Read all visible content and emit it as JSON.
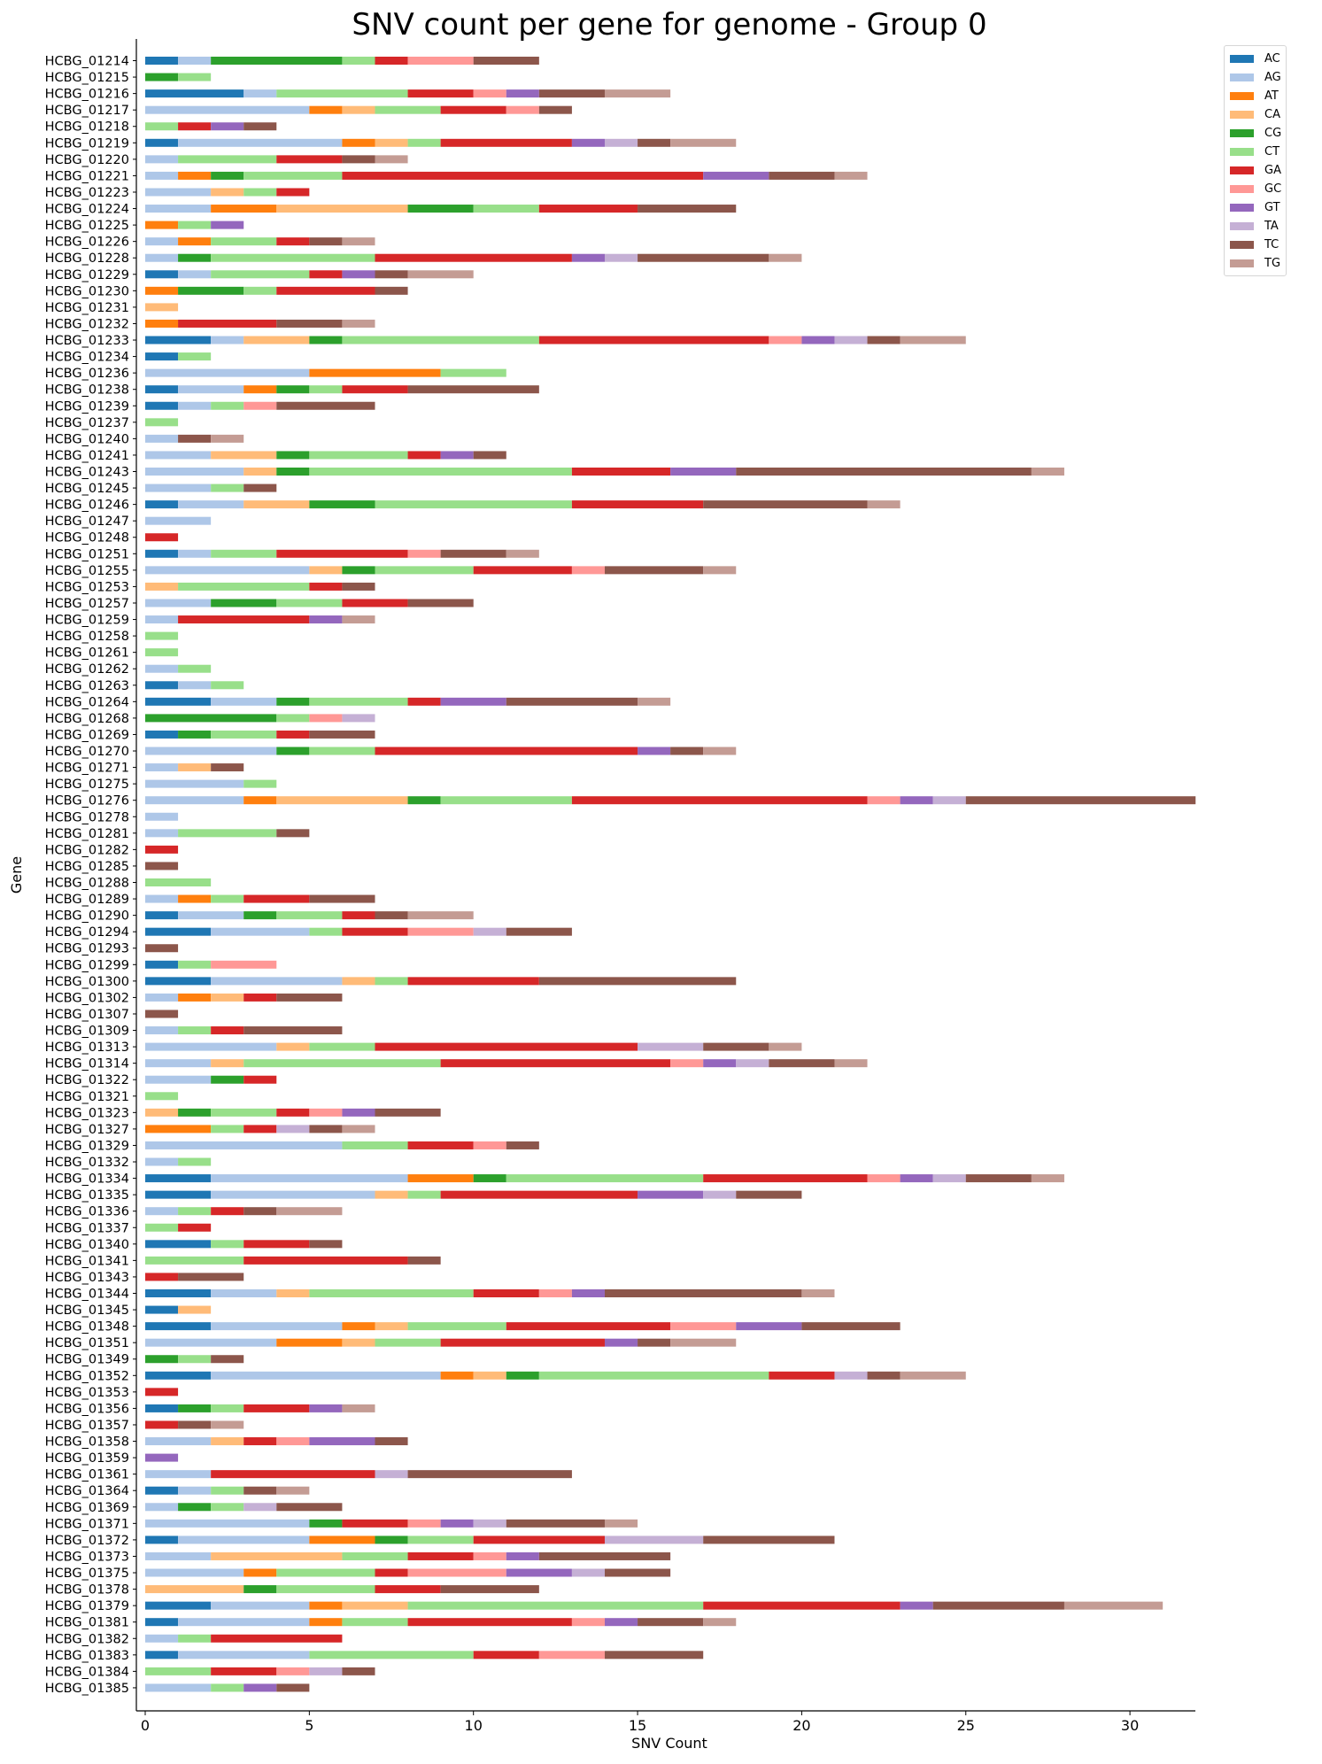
{
  "chart_data": {
    "type": "bar",
    "orientation": "horizontal",
    "stacked": true,
    "title": "SNV count per gene for genome - Group 0",
    "xlabel": "SNV Count",
    "ylabel": "Gene",
    "xlim": [
      0,
      32
    ],
    "xticks": [
      0,
      5,
      10,
      15,
      20,
      25,
      30
    ],
    "grid": false,
    "legend_position": "top-right",
    "series_names": [
      "AC",
      "AG",
      "AT",
      "CA",
      "CG",
      "CT",
      "GA",
      "GC",
      "GT",
      "TA",
      "TC",
      "TG"
    ],
    "colors": [
      "#1f77b4",
      "#aec7e8",
      "#ff7f0e",
      "#ffbb78",
      "#2ca02c",
      "#98df8a",
      "#d62728",
      "#ff9896",
      "#9467bd",
      "#c5b0d5",
      "#8c564b",
      "#c49c94"
    ],
    "categories": [
      "HCBG_01214",
      "HCBG_01215",
      "HCBG_01216",
      "HCBG_01217",
      "HCBG_01218",
      "HCBG_01219",
      "HCBG_01220",
      "HCBG_01221",
      "HCBG_01223",
      "HCBG_01224",
      "HCBG_01225",
      "HCBG_01226",
      "HCBG_01228",
      "HCBG_01229",
      "HCBG_01230",
      "HCBG_01231",
      "HCBG_01232",
      "HCBG_01233",
      "HCBG_01234",
      "HCBG_01236",
      "HCBG_01238",
      "HCBG_01239",
      "HCBG_01237",
      "HCBG_01240",
      "HCBG_01241",
      "HCBG_01243",
      "HCBG_01245",
      "HCBG_01246",
      "HCBG_01247",
      "HCBG_01248",
      "HCBG_01251",
      "HCBG_01255",
      "HCBG_01253",
      "HCBG_01257",
      "HCBG_01259",
      "HCBG_01258",
      "HCBG_01261",
      "HCBG_01262",
      "HCBG_01263",
      "HCBG_01264",
      "HCBG_01268",
      "HCBG_01269",
      "HCBG_01270",
      "HCBG_01271",
      "HCBG_01275",
      "HCBG_01276",
      "HCBG_01278",
      "HCBG_01281",
      "HCBG_01282",
      "HCBG_01285",
      "HCBG_01288",
      "HCBG_01289",
      "HCBG_01290",
      "HCBG_01294",
      "HCBG_01293",
      "HCBG_01299",
      "HCBG_01300",
      "HCBG_01302",
      "HCBG_01307",
      "HCBG_01309",
      "HCBG_01313",
      "HCBG_01314",
      "HCBG_01322",
      "HCBG_01321",
      "HCBG_01323",
      "HCBG_01327",
      "HCBG_01329",
      "HCBG_01332",
      "HCBG_01334",
      "HCBG_01335",
      "HCBG_01336",
      "HCBG_01337",
      "HCBG_01340",
      "HCBG_01341",
      "HCBG_01343",
      "HCBG_01344",
      "HCBG_01345",
      "HCBG_01348",
      "HCBG_01351",
      "HCBG_01349",
      "HCBG_01352",
      "HCBG_01353",
      "HCBG_01356",
      "HCBG_01357",
      "HCBG_01358",
      "HCBG_01359",
      "HCBG_01361",
      "HCBG_01364",
      "HCBG_01369",
      "HCBG_01371",
      "HCBG_01372",
      "HCBG_01373",
      "HCBG_01375",
      "HCBG_01378",
      "HCBG_01379",
      "HCBG_01381",
      "HCBG_01382",
      "HCBG_01383",
      "HCBG_01384",
      "HCBG_01385"
    ],
    "counts": [
      [
        1,
        1,
        0,
        0,
        4,
        1,
        1,
        2,
        0,
        0,
        2,
        0
      ],
      [
        0,
        0,
        0,
        0,
        1,
        1,
        0,
        0,
        0,
        0,
        0,
        0
      ],
      [
        3,
        1,
        0,
        0,
        0,
        4,
        2,
        1,
        1,
        0,
        2,
        2
      ],
      [
        0,
        5,
        1,
        1,
        0,
        2,
        2,
        1,
        0,
        0,
        1,
        0
      ],
      [
        0,
        0,
        0,
        0,
        0,
        1,
        1,
        0,
        1,
        0,
        1,
        0
      ],
      [
        1,
        5,
        1,
        1,
        0,
        1,
        4,
        0,
        1,
        1,
        1,
        2
      ],
      [
        0,
        1,
        0,
        0,
        0,
        3,
        2,
        0,
        0,
        0,
        1,
        1
      ],
      [
        0,
        1,
        1,
        0,
        1,
        3,
        11,
        0,
        2,
        0,
        2,
        1
      ],
      [
        0,
        2,
        0,
        1,
        0,
        1,
        1,
        0,
        0,
        0,
        0,
        0
      ],
      [
        0,
        2,
        2,
        4,
        2,
        2,
        3,
        0,
        0,
        0,
        3,
        0
      ],
      [
        0,
        0,
        1,
        0,
        0,
        1,
        0,
        0,
        1,
        0,
        0,
        0
      ],
      [
        0,
        1,
        1,
        0,
        0,
        2,
        1,
        0,
        0,
        0,
        1,
        1
      ],
      [
        0,
        1,
        0,
        0,
        1,
        5,
        6,
        0,
        1,
        1,
        4,
        1
      ],
      [
        1,
        1,
        0,
        0,
        0,
        3,
        1,
        0,
        1,
        0,
        1,
        2
      ],
      [
        0,
        0,
        1,
        0,
        2,
        1,
        3,
        0,
        0,
        0,
        1,
        0
      ],
      [
        0,
        0,
        0,
        1,
        0,
        0,
        0,
        0,
        0,
        0,
        0,
        0
      ],
      [
        0,
        0,
        1,
        0,
        0,
        0,
        3,
        0,
        0,
        0,
        2,
        1
      ],
      [
        2,
        1,
        0,
        2,
        1,
        6,
        7,
        1,
        1,
        1,
        1,
        2
      ],
      [
        1,
        0,
        0,
        0,
        0,
        1,
        0,
        0,
        0,
        0,
        0,
        0
      ],
      [
        0,
        5,
        4,
        0,
        0,
        2,
        0,
        0,
        0,
        0,
        0,
        0
      ],
      [
        1,
        2,
        1,
        0,
        1,
        1,
        2,
        0,
        0,
        0,
        4,
        0
      ],
      [
        1,
        1,
        0,
        0,
        0,
        1,
        0,
        1,
        0,
        0,
        3,
        0
      ],
      [
        0,
        0,
        0,
        0,
        0,
        1,
        0,
        0,
        0,
        0,
        0,
        0
      ],
      [
        0,
        1,
        0,
        0,
        0,
        0,
        0,
        0,
        0,
        0,
        1,
        1
      ],
      [
        0,
        2,
        0,
        2,
        1,
        3,
        1,
        0,
        1,
        0,
        1,
        0
      ],
      [
        0,
        3,
        0,
        1,
        1,
        8,
        3,
        0,
        2,
        0,
        9,
        1
      ],
      [
        0,
        2,
        0,
        0,
        0,
        1,
        0,
        0,
        0,
        0,
        1,
        0
      ],
      [
        1,
        2,
        0,
        2,
        2,
        6,
        4,
        0,
        0,
        0,
        5,
        1
      ],
      [
        0,
        2,
        0,
        0,
        0,
        0,
        0,
        0,
        0,
        0,
        0,
        0
      ],
      [
        0,
        0,
        0,
        0,
        0,
        0,
        1,
        0,
        0,
        0,
        0,
        0
      ],
      [
        1,
        1,
        0,
        0,
        0,
        2,
        4,
        1,
        0,
        0,
        2,
        1
      ],
      [
        0,
        5,
        0,
        1,
        1,
        3,
        3,
        1,
        0,
        0,
        3,
        1
      ],
      [
        0,
        0,
        0,
        1,
        0,
        4,
        1,
        0,
        0,
        0,
        1,
        0
      ],
      [
        0,
        2,
        0,
        0,
        2,
        2,
        2,
        0,
        0,
        0,
        2,
        0
      ],
      [
        0,
        1,
        0,
        0,
        0,
        0,
        4,
        0,
        1,
        0,
        0,
        1
      ],
      [
        0,
        0,
        0,
        0,
        0,
        1,
        0,
        0,
        0,
        0,
        0,
        0
      ],
      [
        0,
        0,
        0,
        0,
        0,
        1,
        0,
        0,
        0,
        0,
        0,
        0
      ],
      [
        0,
        1,
        0,
        0,
        0,
        1,
        0,
        0,
        0,
        0,
        0,
        0
      ],
      [
        1,
        1,
        0,
        0,
        0,
        1,
        0,
        0,
        0,
        0,
        0,
        0
      ],
      [
        2,
        2,
        0,
        0,
        1,
        3,
        1,
        0,
        2,
        0,
        4,
        1
      ],
      [
        0,
        0,
        0,
        0,
        4,
        1,
        0,
        1,
        0,
        1,
        0,
        0
      ],
      [
        1,
        0,
        0,
        0,
        1,
        2,
        1,
        0,
        0,
        0,
        2,
        0
      ],
      [
        0,
        4,
        0,
        0,
        1,
        2,
        8,
        0,
        1,
        0,
        1,
        1
      ],
      [
        0,
        1,
        0,
        1,
        0,
        0,
        0,
        0,
        0,
        0,
        1,
        0
      ],
      [
        0,
        3,
        0,
        0,
        0,
        1,
        0,
        0,
        0,
        0,
        0,
        0
      ],
      [
        0,
        3,
        1,
        4,
        1,
        4,
        9,
        1,
        1,
        1,
        7,
        0
      ],
      [
        0,
        1,
        0,
        0,
        0,
        0,
        0,
        0,
        0,
        0,
        0,
        0
      ],
      [
        0,
        1,
        0,
        0,
        0,
        3,
        0,
        0,
        0,
        0,
        1,
        0
      ],
      [
        0,
        0,
        0,
        0,
        0,
        0,
        1,
        0,
        0,
        0,
        0,
        0
      ],
      [
        0,
        0,
        0,
        0,
        0,
        0,
        0,
        0,
        0,
        0,
        1,
        0
      ],
      [
        0,
        0,
        0,
        0,
        0,
        2,
        0,
        0,
        0,
        0,
        0,
        0
      ],
      [
        0,
        1,
        1,
        0,
        0,
        1,
        2,
        0,
        0,
        0,
        2,
        0
      ],
      [
        1,
        2,
        0,
        0,
        1,
        2,
        1,
        0,
        0,
        0,
        1,
        2
      ],
      [
        2,
        3,
        0,
        0,
        0,
        1,
        2,
        2,
        0,
        1,
        2,
        0
      ],
      [
        0,
        0,
        0,
        0,
        0,
        0,
        0,
        0,
        0,
        0,
        1,
        0
      ],
      [
        1,
        0,
        0,
        0,
        0,
        1,
        0,
        2,
        0,
        0,
        0,
        0
      ],
      [
        2,
        4,
        0,
        1,
        0,
        1,
        4,
        0,
        0,
        0,
        6,
        0
      ],
      [
        0,
        1,
        1,
        1,
        0,
        0,
        1,
        0,
        0,
        0,
        2,
        0
      ],
      [
        0,
        0,
        0,
        0,
        0,
        0,
        0,
        0,
        0,
        0,
        1,
        0
      ],
      [
        0,
        1,
        0,
        0,
        0,
        1,
        1,
        0,
        0,
        0,
        3,
        0
      ],
      [
        0,
        4,
        0,
        1,
        0,
        2,
        8,
        0,
        0,
        2,
        2,
        1
      ],
      [
        0,
        2,
        0,
        1,
        0,
        6,
        7,
        1,
        1,
        1,
        2,
        1
      ],
      [
        0,
        2,
        0,
        0,
        1,
        0,
        1,
        0,
        0,
        0,
        0,
        0
      ],
      [
        0,
        0,
        0,
        0,
        0,
        1,
        0,
        0,
        0,
        0,
        0,
        0
      ],
      [
        0,
        0,
        0,
        1,
        1,
        2,
        1,
        1,
        1,
        0,
        2,
        0
      ],
      [
        0,
        0,
        2,
        0,
        0,
        1,
        1,
        0,
        0,
        1,
        1,
        1
      ],
      [
        0,
        6,
        0,
        0,
        0,
        2,
        2,
        1,
        0,
        0,
        1,
        0
      ],
      [
        0,
        1,
        0,
        0,
        0,
        1,
        0,
        0,
        0,
        0,
        0,
        0
      ],
      [
        2,
        6,
        2,
        0,
        1,
        6,
        5,
        1,
        1,
        1,
        2,
        1
      ],
      [
        2,
        5,
        0,
        1,
        0,
        1,
        6,
        0,
        2,
        1,
        2,
        0
      ],
      [
        0,
        1,
        0,
        0,
        0,
        1,
        1,
        0,
        0,
        0,
        1,
        2
      ],
      [
        0,
        0,
        0,
        0,
        0,
        1,
        1,
        0,
        0,
        0,
        0,
        0
      ],
      [
        2,
        0,
        0,
        0,
        0,
        1,
        2,
        0,
        0,
        0,
        1,
        0
      ],
      [
        0,
        0,
        0,
        0,
        0,
        3,
        5,
        0,
        0,
        0,
        1,
        0
      ],
      [
        0,
        0,
        0,
        0,
        0,
        0,
        1,
        0,
        0,
        0,
        2,
        0
      ],
      [
        2,
        2,
        0,
        1,
        0,
        5,
        2,
        1,
        1,
        0,
        6,
        1
      ],
      [
        1,
        0,
        0,
        1,
        0,
        0,
        0,
        0,
        0,
        0,
        0,
        0
      ],
      [
        2,
        4,
        1,
        1,
        0,
        3,
        5,
        2,
        2,
        0,
        3,
        0
      ],
      [
        0,
        4,
        2,
        1,
        0,
        2,
        5,
        0,
        1,
        0,
        1,
        2
      ],
      [
        0,
        0,
        0,
        0,
        1,
        1,
        0,
        0,
        0,
        0,
        1,
        0
      ],
      [
        2,
        7,
        1,
        1,
        1,
        7,
        2,
        0,
        0,
        1,
        1,
        2
      ],
      [
        0,
        0,
        0,
        0,
        0,
        0,
        1,
        0,
        0,
        0,
        0,
        0
      ],
      [
        1,
        0,
        0,
        0,
        1,
        1,
        2,
        0,
        1,
        0,
        0,
        1
      ],
      [
        0,
        0,
        0,
        0,
        0,
        0,
        1,
        0,
        0,
        0,
        1,
        1
      ],
      [
        0,
        2,
        0,
        1,
        0,
        0,
        1,
        1,
        2,
        0,
        1,
        0
      ],
      [
        0,
        0,
        0,
        0,
        0,
        0,
        0,
        0,
        1,
        0,
        0,
        0
      ],
      [
        0,
        2,
        0,
        0,
        0,
        0,
        5,
        0,
        0,
        1,
        5,
        0
      ],
      [
        1,
        1,
        0,
        0,
        0,
        1,
        0,
        0,
        0,
        0,
        1,
        1
      ],
      [
        0,
        1,
        0,
        0,
        1,
        1,
        0,
        0,
        0,
        1,
        2,
        0
      ],
      [
        0,
        5,
        0,
        0,
        1,
        0,
        2,
        1,
        1,
        1,
        3,
        1
      ],
      [
        1,
        4,
        2,
        0,
        1,
        2,
        4,
        0,
        0,
        3,
        4,
        0
      ],
      [
        0,
        2,
        0,
        4,
        0,
        2,
        2,
        1,
        1,
        0,
        4,
        0
      ],
      [
        0,
        3,
        1,
        0,
        0,
        3,
        1,
        3,
        2,
        1,
        2,
        0
      ],
      [
        0,
        0,
        0,
        3,
        1,
        3,
        2,
        0,
        0,
        0,
        3,
        0
      ],
      [
        2,
        3,
        1,
        2,
        0,
        9,
        6,
        0,
        1,
        0,
        4,
        3
      ],
      [
        1,
        4,
        1,
        0,
        0,
        2,
        5,
        1,
        1,
        0,
        2,
        1
      ],
      [
        0,
        1,
        0,
        0,
        0,
        1,
        4,
        0,
        0,
        0,
        0,
        0
      ],
      [
        1,
        4,
        0,
        0,
        0,
        5,
        2,
        2,
        0,
        0,
        3,
        0
      ],
      [
        0,
        0,
        0,
        0,
        0,
        2,
        2,
        1,
        0,
        1,
        1,
        0
      ],
      [
        0,
        2,
        0,
        0,
        0,
        1,
        0,
        0,
        1,
        0,
        1,
        0
      ]
    ]
  }
}
